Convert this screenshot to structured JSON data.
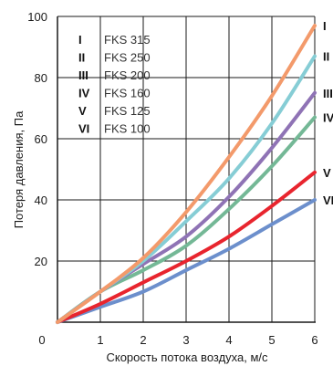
{
  "chart_data": {
    "type": "line",
    "xlabel": "Скорость потока воздуха, м/с",
    "ylabel": "Потеря давления, Па",
    "xlim": [
      0,
      6
    ],
    "ylim": [
      0,
      100
    ],
    "x_ticks": [
      "0",
      "1",
      "2",
      "3",
      "4",
      "5",
      "6"
    ],
    "y_ticks": [
      "20",
      "40",
      "60",
      "80",
      "100"
    ],
    "grid": true,
    "legend_position": "top-left",
    "x": [
      0,
      1,
      2,
      3,
      4,
      5,
      6
    ],
    "series": [
      {
        "name": "FKS 315",
        "roman": "I",
        "color": "#f39a6b",
        "values": [
          0,
          10,
          21,
          36,
          54,
          74,
          97
        ]
      },
      {
        "name": "FKS 250",
        "roman": "II",
        "color": "#86cdd5",
        "values": [
          0,
          10,
          20,
          33,
          47,
          65,
          87
        ]
      },
      {
        "name": "FKS 200",
        "roman": "III",
        "color": "#8f73b5",
        "values": [
          0,
          10,
          19,
          28,
          41,
          57,
          75
        ]
      },
      {
        "name": "FKS 160",
        "roman": "IV",
        "color": "#74b896",
        "values": [
          0,
          10,
          17,
          25,
          37,
          51,
          67
        ]
      },
      {
        "name": "FKS 125",
        "roman": "V",
        "color": "#e8252e",
        "values": [
          0,
          6,
          13,
          20,
          28,
          38,
          49
        ]
      },
      {
        "name": "FKS 100",
        "roman": "VI",
        "color": "#6c8fcc",
        "values": [
          0,
          5,
          10,
          17,
          24,
          32,
          40
        ]
      }
    ]
  }
}
